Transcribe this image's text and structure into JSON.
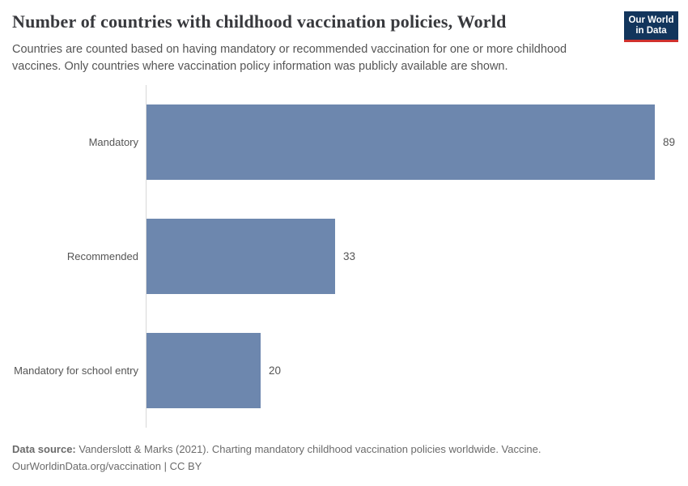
{
  "header": {
    "title": "Number of countries with childhood vaccination policies, World",
    "subtitle": "Countries are counted based on having mandatory or recommended vaccination for one or more childhood vaccines. Only countries where vaccination policy information was publicly available are shown."
  },
  "logo": {
    "line1": "Our World",
    "line2": "in Data",
    "bg_color": "#12355c",
    "accent_color": "#d0312d"
  },
  "chart_data": {
    "type": "bar",
    "orientation": "horizontal",
    "title": "Number of countries with childhood vaccination policies, World",
    "categories": [
      "Mandatory",
      "Recommended",
      "Mandatory for school entry"
    ],
    "values": [
      89,
      33,
      20
    ],
    "xlabel": "",
    "ylabel": "",
    "xlim": [
      0,
      89
    ],
    "grid": false,
    "legend": "none",
    "bar_color": "#6d87ae",
    "label_color": "#555555"
  },
  "footer": {
    "source_label": "Data source:",
    "source_text": " Vanderslott & Marks (2021). Charting mandatory childhood vaccination policies worldwide. Vaccine.",
    "license_line": "OurWorldinData.org/vaccination | CC BY"
  }
}
